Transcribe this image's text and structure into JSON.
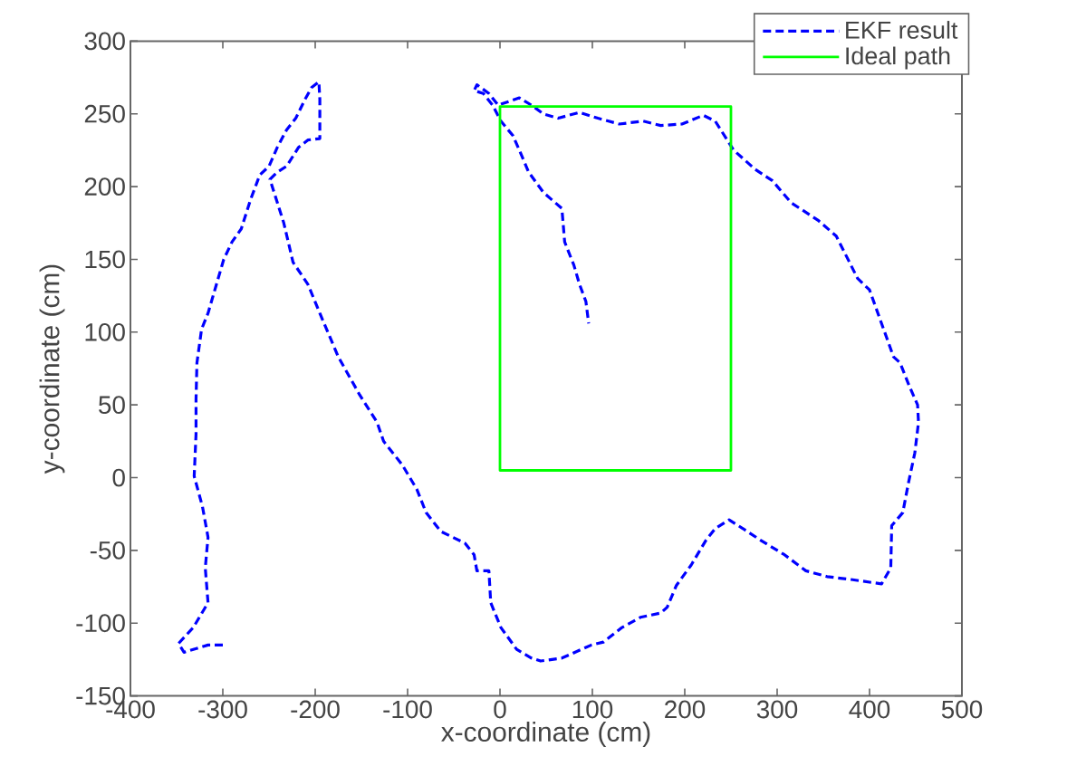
{
  "chart_data": {
    "type": "line",
    "xlabel": "x-coordinate (cm)",
    "ylabel": "y-coordinate (cm)",
    "xlim": [
      -400,
      500
    ],
    "ylim": [
      -150,
      300
    ],
    "xticks": [
      -400,
      -300,
      -200,
      -100,
      0,
      100,
      200,
      300,
      400,
      500
    ],
    "yticks": [
      -150,
      -100,
      -50,
      0,
      50,
      100,
      150,
      200,
      250,
      300
    ],
    "legend": "top right",
    "series": [
      {
        "name": "EKF result",
        "color": "#0000ff",
        "line_style": "dashed",
        "x": [
          -300,
          -316,
          -342,
          -348,
          -332,
          -316,
          -319,
          -316,
          -322,
          -331,
          -329,
          -329,
          -328,
          -323,
          -316,
          -299,
          -290,
          -280,
          -270,
          -260,
          -250,
          -241,
          -231,
          -221,
          -211,
          -204,
          -196,
          -195,
          -195,
          -208,
          -218,
          -231,
          -241,
          -249,
          -244,
          -234,
          -224,
          -208,
          -195,
          -175,
          -152,
          -133,
          -126,
          -106,
          -90,
          -80,
          -64,
          -38,
          -28,
          -25,
          -12,
          -10,
          1,
          18,
          34,
          44,
          67,
          99,
          112,
          132,
          152,
          174,
          181,
          191,
          207,
          223,
          233,
          248,
          263,
          282,
          308,
          331,
          354,
          380,
          413,
          423,
          424,
          436,
          442,
          449,
          453,
          452,
          443,
          433,
          426,
          400,
          387,
          364,
          344,
          315,
          295,
          276,
          253,
          233,
          220,
          197,
          174,
          155,
          129,
          106,
          86,
          63,
          47,
          34,
          21,
          -2,
          -12,
          -25,
          -28,
          -18,
          -8,
          1,
          14,
          21,
          31,
          47,
          67,
          70,
          80,
          86,
          93,
          96
        ],
        "values": [
          -115,
          -115,
          -120,
          -114,
          -103,
          -86,
          -62,
          -41,
          -20,
          1,
          30,
          54,
          79,
          102,
          113,
          150,
          162,
          171,
          191,
          208,
          214,
          227,
          239,
          247,
          260,
          268,
          272,
          260,
          233,
          232,
          227,
          214,
          210,
          205,
          195,
          175,
          148,
          133,
          113,
          83,
          57,
          38,
          25,
          9,
          -8,
          -24,
          -37,
          -45,
          -53,
          -64,
          -64,
          -86,
          -103,
          -118,
          -124,
          -126,
          -124,
          -115,
          -113,
          -103,
          -96,
          -93,
          -89,
          -74,
          -60,
          -43,
          -35,
          -29,
          -35,
          -43,
          -53,
          -64,
          -68,
          -70,
          -73,
          -62,
          -33,
          -24,
          -4,
          17,
          38,
          50,
          63,
          79,
          83,
          129,
          137,
          166,
          177,
          189,
          204,
          212,
          225,
          245,
          249,
          243,
          242,
          245,
          243,
          247,
          251,
          247,
          250,
          256,
          261,
          256,
          264,
          270,
          266,
          264,
          256,
          245,
          235,
          225,
          210,
          196,
          185,
          162,
          146,
          133,
          121,
          106
        ]
      },
      {
        "name": "Ideal path",
        "color": "#00ff00",
        "line_style": "solid",
        "x": [
          0,
          250,
          250,
          0,
          0
        ],
        "values": [
          5,
          5,
          255,
          255,
          5
        ]
      }
    ]
  }
}
